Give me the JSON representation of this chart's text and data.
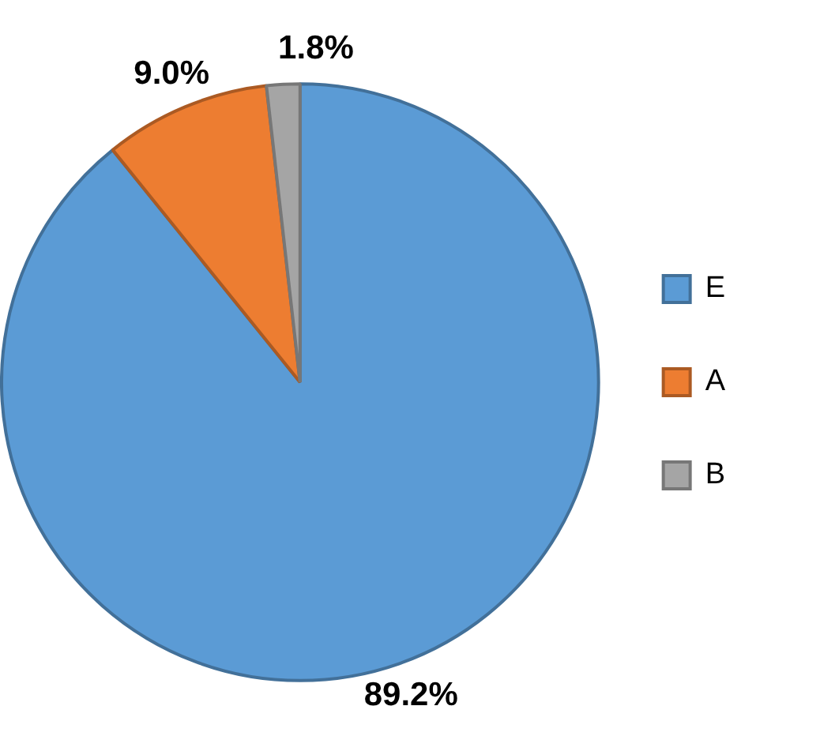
{
  "chart_data": {
    "type": "pie",
    "categories": [
      "E",
      "A",
      "B"
    ],
    "values": [
      89.2,
      9.0,
      1.8
    ],
    "colors": [
      "#5b9bd5",
      "#ed7d31",
      "#a5a5a5"
    ],
    "value_labels": [
      "89.2%",
      "9.0%",
      "1.8%"
    ],
    "legend": "right"
  }
}
